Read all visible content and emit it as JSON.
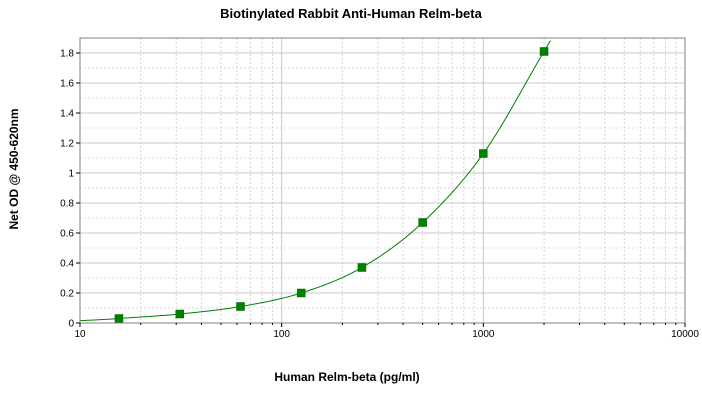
{
  "chart_data": {
    "type": "line",
    "title": "Biotinylated Rabbit Anti-Human Relm-beta",
    "xlabel": "Human Relm-beta (pg/ml)",
    "ylabel": "Net OD @ 450-620nm",
    "x_scale": "log",
    "xlim": [
      10,
      10000
    ],
    "ylim": [
      0,
      1.9
    ],
    "x_ticks": [
      10,
      100,
      1000,
      10000
    ],
    "x_tick_labels": [
      "10",
      "100",
      "1000",
      "10000"
    ],
    "y_ticks": [
      0,
      0.2,
      0.4,
      0.6,
      0.8,
      1,
      1.2,
      1.4,
      1.6,
      1.8
    ],
    "y_tick_labels": [
      "0",
      "0.2",
      "0.4",
      "0.6",
      "0.8",
      "1",
      "1.2",
      "1.4",
      "1.6",
      "1.8"
    ],
    "grid": true,
    "series": [
      {
        "color": "#008000",
        "marker": "square",
        "x": [
          15.6,
          31.25,
          62.5,
          125,
          250,
          500,
          1000,
          2000
        ],
        "y": [
          0.03,
          0.06,
          0.11,
          0.2,
          0.37,
          0.67,
          1.13,
          1.81
        ]
      }
    ]
  }
}
